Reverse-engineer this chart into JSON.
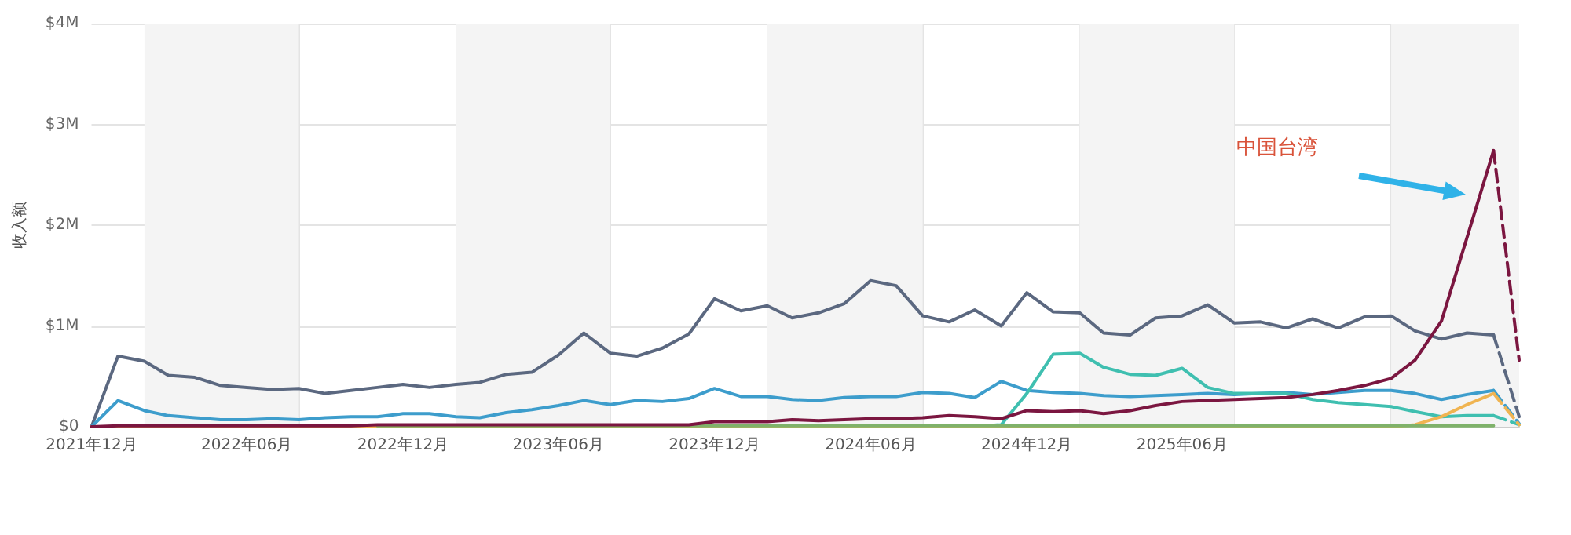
{
  "chart_data": {
    "type": "line",
    "ylabel": "收入额",
    "marker": "none",
    "grid": true,
    "x": [
      "2021-12",
      "2022-01",
      "2022-02",
      "2022-03",
      "2022-04",
      "2022-05",
      "2022-06",
      "2022-07",
      "2022-08",
      "2022-09",
      "2022-10",
      "2022-11",
      "2022-12",
      "2023-01",
      "2023-02",
      "2023-03",
      "2023-04",
      "2023-05",
      "2023-06",
      "2023-07",
      "2023-08",
      "2023-09",
      "2023-10",
      "2023-11",
      "2023-12",
      "2024-01",
      "2024-02",
      "2024-03",
      "2024-04",
      "2024-05",
      "2024-06",
      "2024-07",
      "2024-08",
      "2024-09",
      "2024-10",
      "2024-11",
      "2024-12",
      "2025-01",
      "2025-02",
      "2025-03",
      "2025-04",
      "2025-05",
      "2025-06",
      "2025-07",
      "2025-08",
      "2025-09",
      "2025-10",
      "2025-11",
      "2025-12",
      "2026-01",
      "2026-02",
      "2026-03",
      "2026-04",
      "2026-05",
      "2026-06"
    ],
    "xlim": [
      "2021-12",
      "2026-07"
    ],
    "xticks": [
      {
        "value": "2021-12",
        "label": "2021年12月"
      },
      {
        "value": "2022-06",
        "label": "2022年06月"
      },
      {
        "value": "2022-08",
        "label": null
      },
      {
        "value": "2022-12",
        "label": "2022年12月"
      },
      {
        "value": "2023-02",
        "label": null
      },
      {
        "value": "2023-06",
        "label": "2023年06月"
      },
      {
        "value": "2023-08",
        "label": null
      },
      {
        "value": "2023-12",
        "label": "2023年12月"
      },
      {
        "value": "2024-02",
        "label": null
      },
      {
        "value": "2024-06",
        "label": "2024年06月"
      },
      {
        "value": "2024-08",
        "label": null
      },
      {
        "value": "2024-12",
        "label": "2024年12月"
      },
      {
        "value": "2025-02",
        "label": null
      },
      {
        "value": "2025-06",
        "label": "2025年06月"
      },
      {
        "value": "2025-08",
        "label": null
      },
      {
        "value": "2026-02",
        "label": null
      }
    ],
    "ylim": [
      0,
      4
    ],
    "yticks": [
      {
        "value": 0,
        "label": "$0"
      },
      {
        "value": 1,
        "label": "$1M"
      },
      {
        "value": 2,
        "label": "$2M"
      },
      {
        "value": 3,
        "label": "$3M"
      },
      {
        "value": 4,
        "label": "$4M"
      }
    ],
    "bands": [
      {
        "axis": "x",
        "from": "2022-02",
        "to": "2022-08",
        "color": "#f4f4f4"
      },
      {
        "axis": "x",
        "from": "2023-02",
        "to": "2023-08",
        "color": "#f4f4f4"
      },
      {
        "axis": "x",
        "from": "2024-02",
        "to": "2024-08",
        "color": "#f4f4f4"
      },
      {
        "axis": "x",
        "from": "2025-02",
        "to": "2025-08",
        "color": "#f4f4f4"
      },
      {
        "axis": "x",
        "from": "2026-02",
        "to": "2026-07",
        "color": "#f4f4f4"
      }
    ],
    "series": [
      {
        "color": "#5b6880",
        "values": [
          0,
          0.7,
          0.65,
          0.51,
          0.49,
          0.41,
          0.39,
          0.37,
          0.38,
          0.33,
          0.36,
          0.39,
          0.42,
          0.39,
          0.42,
          0.44,
          0.52,
          0.54,
          0.71,
          0.93,
          0.73,
          0.7,
          0.78,
          0.92,
          1.27,
          1.15,
          1.2,
          1.08,
          1.13,
          1.22,
          1.45,
          1.4,
          1.1,
          1.04,
          1.16,
          1.0,
          1.33,
          1.14,
          1.13,
          0.93,
          0.91,
          1.08,
          1.1,
          1.21,
          1.03,
          1.04,
          0.98,
          1.07,
          0.98,
          1.09,
          1.1,
          0.95,
          0.87,
          0.93,
          0.91
        ]
      },
      {
        "color": "#3d9dcc",
        "values": [
          0,
          0.26,
          0.16,
          0.11,
          0.09,
          0.07,
          0.07,
          0.08,
          0.07,
          0.09,
          0.1,
          0.1,
          0.13,
          0.13,
          0.1,
          0.09,
          0.14,
          0.17,
          0.21,
          0.26,
          0.22,
          0.26,
          0.25,
          0.28,
          0.38,
          0.3,
          0.3,
          0.27,
          0.26,
          0.29,
          0.3,
          0.3,
          0.34,
          0.33,
          0.29,
          0.45,
          0.36,
          0.34,
          0.33,
          0.31,
          0.3,
          0.31,
          0.32,
          0.33,
          0.32,
          0.33,
          0.34,
          0.32,
          0.34,
          0.36,
          0.36,
          0.33,
          0.27,
          0.32,
          0.36
        ]
      },
      {
        "color": "#3fbfb0",
        "values": [
          null,
          null,
          null,
          null,
          null,
          null,
          null,
          null,
          null,
          null,
          null,
          null,
          null,
          null,
          null,
          null,
          null,
          null,
          null,
          null,
          null,
          null,
          null,
          null,
          null,
          null,
          null,
          null,
          null,
          null,
          null,
          null,
          null,
          null,
          0,
          0.02,
          0.33,
          0.72,
          0.73,
          0.59,
          0.52,
          0.51,
          0.58,
          0.39,
          0.33,
          0.33,
          0.33,
          0.27,
          0.24,
          0.22,
          0.2,
          0.15,
          0.1,
          0.11,
          0.11
        ]
      },
      {
        "color": "#f0b451",
        "values": [
          0,
          0,
          0,
          0,
          0,
          0,
          0,
          0,
          0,
          0,
          0,
          0,
          0,
          0,
          0,
          0,
          0,
          0,
          0,
          0,
          0,
          0,
          0,
          0,
          0,
          0,
          0,
          0,
          0,
          0,
          0,
          0,
          0,
          0,
          0,
          0,
          0,
          0,
          0,
          0,
          0,
          0,
          0,
          0,
          0,
          0,
          0,
          0,
          0,
          0,
          0,
          0.02,
          0.1,
          0.22,
          0.33
        ]
      },
      {
        "color": "#7fb26a",
        "values": [
          null,
          null,
          null,
          null,
          null,
          null,
          null,
          null,
          null,
          null,
          null,
          0.01,
          0.01,
          0.01,
          0.01,
          0.01,
          0.01,
          0.01,
          0.01,
          0.01,
          0.01,
          0.01,
          0.01,
          0.01,
          0.01,
          0.01,
          0.01,
          0.01,
          0.01,
          0.01,
          0.01,
          0.01,
          0.01,
          0.01,
          0.01,
          0.01,
          0.01,
          0.01,
          0.01,
          0.01,
          0.01,
          0.01,
          0.01,
          0.01,
          0.01,
          0.01,
          0.01,
          0.01,
          0.01,
          0.01,
          0.01,
          0.01,
          0.01,
          0.01,
          0.01
        ]
      },
      {
        "color": "#7b1640",
        "values": [
          0,
          0.01,
          0.01,
          0.01,
          0.01,
          0.01,
          0.01,
          0.01,
          0.01,
          0.01,
          0.01,
          0.02,
          0.02,
          0.02,
          0.02,
          0.02,
          0.02,
          0.02,
          0.02,
          0.02,
          0.02,
          0.02,
          0.02,
          0.02,
          0.05,
          0.05,
          0.05,
          0.07,
          0.06,
          0.07,
          0.08,
          0.08,
          0.09,
          0.11,
          0.1,
          0.08,
          0.16,
          0.15,
          0.16,
          0.13,
          0.16,
          0.21,
          0.25,
          0.26,
          0.27,
          0.28,
          0.29,
          0.32,
          0.36,
          0.41,
          0.48,
          0.66,
          1.05,
          1.88,
          2.74
        ]
      },
      {
        "color": "#5b6880",
        "line_style": "dashed",
        "x": [
          "2026-06",
          "2026-07"
        ],
        "values": [
          0.91,
          0.1
        ]
      },
      {
        "color": "#3d9dcc",
        "line_style": "dashed",
        "x": [
          "2026-06",
          "2026-07"
        ],
        "values": [
          0.36,
          0.03
        ]
      },
      {
        "color": "#3fbfb0",
        "line_style": "dashed",
        "x": [
          "2026-06",
          "2026-07"
        ],
        "values": [
          0.11,
          0.02
        ]
      },
      {
        "color": "#f0b451",
        "line_style": "dashed",
        "x": [
          "2026-06",
          "2026-07"
        ],
        "values": [
          0.33,
          0.02
        ]
      },
      {
        "color": "#7b1640",
        "line_style": "dashed",
        "x": [
          "2026-06",
          "2026-07"
        ],
        "values": [
          2.74,
          0.66
        ]
      }
    ],
    "annotations": [
      "中国台湾"
    ]
  }
}
